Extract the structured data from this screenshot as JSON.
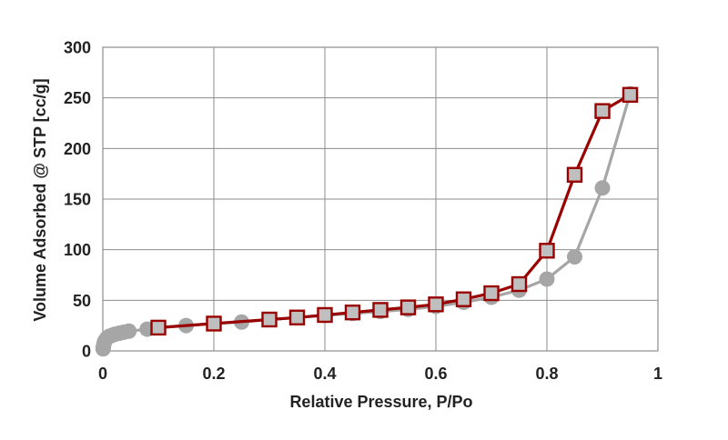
{
  "chart_data": {
    "type": "scatter",
    "title": "",
    "xlabel": "Relative Pressure, P/Po",
    "ylabel": "Volume Adsorbed @ STP [cc/g]",
    "xlim": [
      0,
      1
    ],
    "ylim": [
      0,
      300
    ],
    "x_ticks": [
      "0",
      "0.2",
      "0.4",
      "0.6",
      "0.8",
      "1"
    ],
    "y_ticks": [
      "0",
      "50",
      "100",
      "150",
      "200",
      "250",
      "300"
    ],
    "x_tick_values": [
      0,
      0.2,
      0.4,
      0.6,
      0.8,
      1
    ],
    "y_tick_values": [
      0,
      50,
      100,
      150,
      200,
      250,
      300
    ],
    "grid": true,
    "legend": "none",
    "series": [
      {
        "color": "#a6a6a6",
        "marker": "circle",
        "points": [
          [
            0.0005,
            2
          ],
          [
            0.001,
            4
          ],
          [
            0.002,
            7
          ],
          [
            0.003,
            9
          ],
          [
            0.005,
            11
          ],
          [
            0.008,
            13
          ],
          [
            0.012,
            14.5
          ],
          [
            0.017,
            15.5
          ],
          [
            0.022,
            16.5
          ],
          [
            0.03,
            17.5
          ],
          [
            0.038,
            18.5
          ],
          [
            0.047,
            19.5
          ],
          [
            0.08,
            21.5
          ],
          [
            0.1,
            23
          ],
          [
            0.15,
            25
          ],
          [
            0.2,
            27
          ],
          [
            0.25,
            28.5
          ],
          [
            0.3,
            31
          ],
          [
            0.35,
            33
          ],
          [
            0.4,
            35
          ],
          [
            0.45,
            37
          ],
          [
            0.5,
            39
          ],
          [
            0.55,
            41
          ],
          [
            0.6,
            44
          ],
          [
            0.65,
            48
          ],
          [
            0.7,
            53
          ],
          [
            0.75,
            60
          ],
          [
            0.8,
            71
          ],
          [
            0.85,
            93
          ],
          [
            0.9,
            161
          ],
          [
            0.95,
            254
          ]
        ]
      },
      {
        "color": "#990000",
        "marker": "square",
        "points": [
          [
            0.1,
            23
          ],
          [
            0.2,
            27
          ],
          [
            0.3,
            31
          ],
          [
            0.35,
            33
          ],
          [
            0.4,
            35.5
          ],
          [
            0.45,
            38
          ],
          [
            0.5,
            40.5
          ],
          [
            0.55,
            43
          ],
          [
            0.6,
            46
          ],
          [
            0.65,
            51
          ],
          [
            0.7,
            57
          ],
          [
            0.75,
            66
          ],
          [
            0.8,
            99
          ],
          [
            0.85,
            174
          ],
          [
            0.9,
            237
          ],
          [
            0.95,
            253
          ]
        ]
      }
    ]
  }
}
